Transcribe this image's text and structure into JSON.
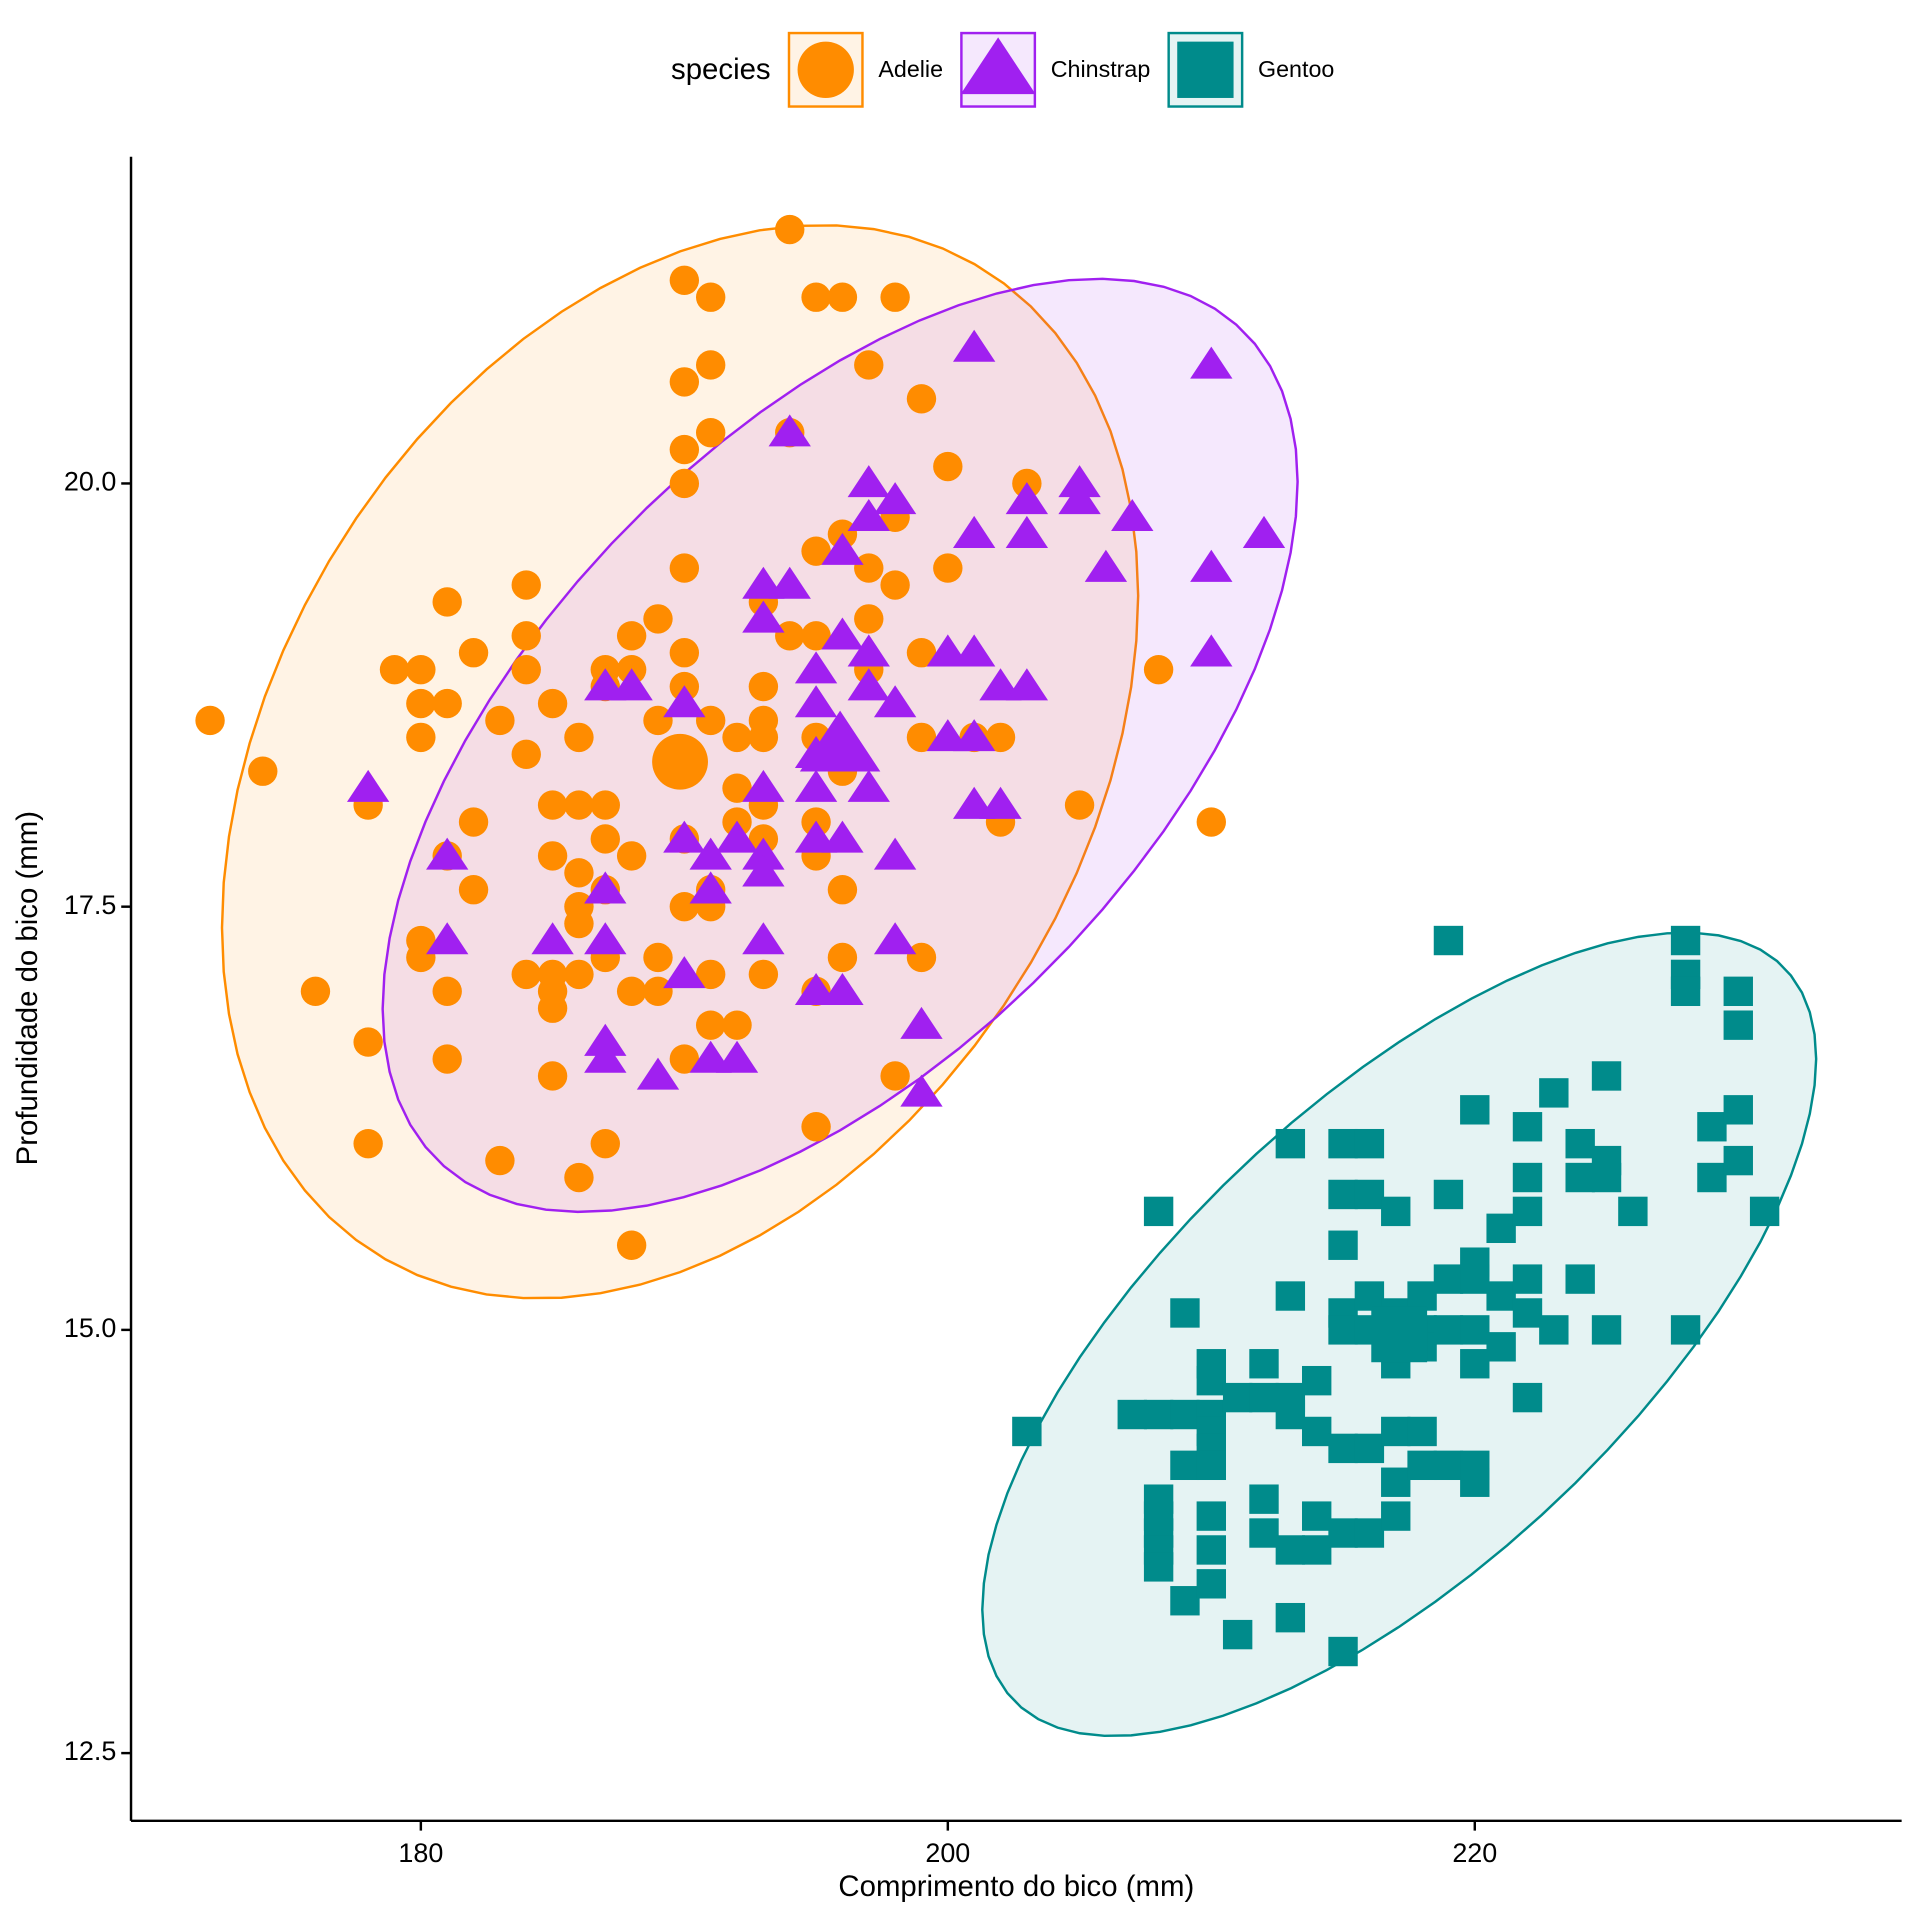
{
  "chart_data": {
    "type": "scatter",
    "x_label": "Comprimento do bico (mm)",
    "y_label": "Profundidade do bico (mm)",
    "legend_title": "species",
    "legend_position": "top",
    "ellipse": true,
    "mean_point": true,
    "grid": false,
    "xlim": [
      169,
      236.2
    ],
    "xticks": [
      180,
      200,
      220
    ],
    "ylim": [
      12.1,
      21.93
    ],
    "yticks": [
      {
        "value": 12.5,
        "label": "12.5"
      },
      {
        "value": 15,
        "label": "15.0"
      },
      {
        "value": 17.5,
        "label": "17.5"
      },
      {
        "value": 20,
        "label": "20.0"
      }
    ],
    "series": [
      {
        "name": "Adelie",
        "color": "#FF8C00",
        "marker": "circle",
        "x": [
          172,
          174,
          176,
          178,
          178,
          178,
          179,
          180,
          180,
          180,
          180,
          180,
          181,
          181,
          181,
          181,
          181,
          182,
          182,
          182,
          183,
          183,
          184,
          184,
          184,
          184,
          184,
          185,
          185,
          185,
          185,
          185,
          185,
          185,
          186,
          186,
          186,
          186,
          186,
          186,
          186,
          187,
          187,
          187,
          187,
          187,
          187,
          187,
          188,
          188,
          188,
          188,
          188,
          189,
          189,
          189,
          189,
          190,
          190,
          190,
          190,
          190,
          190,
          190,
          190,
          190,
          190,
          191,
          191,
          191,
          191,
          191,
          191,
          191,
          191,
          192,
          192,
          192,
          192,
          193,
          193,
          193,
          193,
          193,
          193,
          193,
          194,
          194,
          194,
          195,
          195,
          195,
          195,
          195,
          195,
          195,
          195,
          196,
          196,
          196,
          196,
          196,
          197,
          197,
          197,
          197,
          198,
          198,
          198,
          198,
          199,
          199,
          199,
          199,
          200,
          200,
          201,
          202,
          202,
          203,
          205,
          208,
          210
        ],
        "y": [
          18.6,
          18.3,
          17.0,
          18.1,
          16.7,
          16.1,
          18.9,
          18.9,
          18.7,
          18.5,
          17.3,
          17.2,
          19.3,
          18.7,
          17.8,
          17.0,
          16.6,
          19.0,
          18.0,
          17.6,
          18.6,
          16.0,
          19.4,
          19.1,
          18.9,
          18.4,
          17.1,
          18.7,
          18.1,
          17.8,
          17.1,
          17.0,
          16.9,
          16.5,
          18.5,
          18.1,
          17.7,
          17.5,
          17.4,
          17.1,
          15.9,
          18.9,
          18.8,
          18.1,
          17.9,
          17.6,
          17.2,
          16.1,
          19.1,
          18.9,
          17.8,
          17.0,
          15.5,
          19.2,
          18.6,
          17.2,
          17.0,
          21.2,
          20.6,
          20.2,
          20.0,
          19.5,
          19.0,
          18.8,
          17.9,
          17.5,
          16.6,
          21.1,
          20.7,
          20.3,
          18.6,
          17.6,
          17.5,
          16.8,
          17.1,
          18.5,
          18.2,
          18.0,
          16.8,
          19.3,
          18.8,
          18.6,
          18.5,
          18.1,
          17.9,
          17.1,
          21.5,
          20.3,
          19.1,
          21.1,
          19.6,
          19.1,
          18.5,
          18.0,
          17.8,
          17.0,
          16.2,
          21.1,
          19.7,
          18.3,
          17.6,
          17.2,
          20.7,
          19.5,
          19.2,
          18.9,
          21.1,
          19.8,
          19.4,
          16.5,
          20.5,
          19.0,
          18.5,
          17.2,
          20.1,
          19.5,
          18.5,
          18.5,
          18.0,
          20.0,
          18.1,
          18.9,
          18.0
        ]
      },
      {
        "name": "Chinstrap",
        "color": "#A020F0",
        "marker": "triangle",
        "x": [
          178,
          181,
          181,
          185,
          187,
          187,
          187,
          187,
          187,
          188,
          189,
          190,
          190,
          190,
          191,
          191,
          191,
          192,
          192,
          193,
          193,
          193,
          193,
          193,
          193,
          194,
          194,
          195,
          195,
          195,
          195,
          195,
          195,
          196,
          196,
          196,
          196,
          197,
          197,
          197,
          197,
          197,
          198,
          198,
          198,
          198,
          199,
          199,
          200,
          200,
          201,
          201,
          201,
          201,
          201,
          202,
          202,
          203,
          203,
          203,
          205,
          205,
          206,
          207,
          210,
          210,
          210,
          212
        ],
        "y": [
          18.2,
          17.8,
          17.3,
          17.3,
          18.8,
          17.6,
          17.3,
          16.7,
          16.6,
          18.8,
          16.5,
          18.7,
          17.9,
          17.1,
          17.8,
          17.6,
          16.6,
          17.9,
          16.6,
          19.4,
          19.2,
          18.2,
          17.8,
          17.7,
          17.3,
          20.3,
          19.4,
          18.9,
          18.7,
          18.4,
          18.2,
          17.9,
          17.0,
          19.6,
          19.1,
          17.9,
          17.0,
          20.0,
          19.8,
          19.0,
          18.8,
          18.2,
          19.9,
          18.7,
          17.8,
          17.3,
          16.8,
          16.4,
          19.0,
          18.5,
          20.8,
          19.7,
          19.0,
          18.5,
          18.1,
          18.8,
          18.1,
          19.9,
          19.7,
          18.8,
          20.0,
          19.9,
          19.5,
          19.8,
          20.7,
          19.5,
          19.0,
          19.7
        ]
      },
      {
        "name": "Gentoo",
        "color": "#008B8B",
        "marker": "square",
        "x": [
          203,
          207,
          208,
          208,
          208,
          208,
          208,
          208,
          208,
          209,
          209,
          209,
          209,
          210,
          210,
          210,
          210,
          210,
          210,
          210,
          210,
          210,
          211,
          211,
          212,
          212,
          212,
          212,
          213,
          213,
          213,
          213,
          213,
          213,
          214,
          214,
          214,
          214,
          215,
          215,
          215,
          215,
          215,
          215,
          215,
          215,
          216,
          216,
          216,
          216,
          216,
          216,
          217,
          217,
          217,
          217,
          217,
          217,
          217,
          217,
          218,
          218,
          218,
          218,
          218,
          219,
          219,
          219,
          219,
          219,
          220,
          220,
          220,
          220,
          220,
          220,
          220,
          221,
          221,
          221,
          222,
          222,
          222,
          222,
          222,
          222,
          223,
          223,
          224,
          224,
          224,
          225,
          225,
          225,
          225,
          226,
          228,
          228,
          228,
          228,
          229,
          229,
          230,
          230,
          230,
          230,
          231
        ],
        "y": [
          14.4,
          14.5,
          15.7,
          14.5,
          14.0,
          13.9,
          13.8,
          13.7,
          13.6,
          15.1,
          14.5,
          14.2,
          13.4,
          14.8,
          14.7,
          14.5,
          14.4,
          14.3,
          14.2,
          13.9,
          13.7,
          13.5,
          14.6,
          13.2,
          14.8,
          14.6,
          14.0,
          13.8,
          16.1,
          15.2,
          14.6,
          14.5,
          13.7,
          13.3,
          14.7,
          14.4,
          13.9,
          13.7,
          16.1,
          15.8,
          15.5,
          15.1,
          15.0,
          14.3,
          13.8,
          13.1,
          16.1,
          15.8,
          15.2,
          15.0,
          14.3,
          13.8,
          15.7,
          15.1,
          15.0,
          14.9,
          14.8,
          14.4,
          14.1,
          13.9,
          15.2,
          15.0,
          14.9,
          14.4,
          14.2,
          17.3,
          15.8,
          15.3,
          15.0,
          14.2,
          16.3,
          15.4,
          15.3,
          15.0,
          14.8,
          14.2,
          14.1,
          15.6,
          15.2,
          14.9,
          16.2,
          15.9,
          15.7,
          15.3,
          15.1,
          14.6,
          16.4,
          15.0,
          16.1,
          15.9,
          15.3,
          16.5,
          16.0,
          15.9,
          15.0,
          15.7,
          17.3,
          17.1,
          17.0,
          15.0,
          16.2,
          15.9,
          17.0,
          16.8,
          16.3,
          16.0,
          15.7
        ]
      }
    ]
  }
}
